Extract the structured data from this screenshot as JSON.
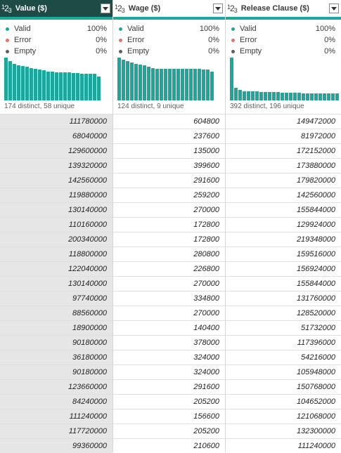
{
  "accent_color": "#1aa79c",
  "header_selected_color": "#1e4b45",
  "status_colors": {
    "valid": "#1aa79c",
    "error": "#e8706a",
    "empty": "#605e5c"
  },
  "columns": [
    {
      "name": "Value ($)",
      "type_icon": "whole-number-icon",
      "selected": true,
      "stats": {
        "valid_label": "Valid",
        "valid": "100%",
        "error_label": "Error",
        "error": "0%",
        "empty_label": "Empty",
        "empty": "0%"
      },
      "distribution_relative": [
        1.0,
        0.92,
        0.85,
        0.82,
        0.8,
        0.78,
        0.75,
        0.73,
        0.72,
        0.7,
        0.68,
        0.68,
        0.66,
        0.66,
        0.65,
        0.65,
        0.64,
        0.64,
        0.63,
        0.63,
        0.62,
        0.62,
        0.55
      ],
      "distinct_text": "174 distinct, 58 unique",
      "values": [
        "111780000",
        "68040000",
        "129600000",
        "139320000",
        "142560000",
        "119880000",
        "130140000",
        "110160000",
        "200340000",
        "118800000",
        "122040000",
        "130140000",
        "97740000",
        "88560000",
        "18900000",
        "90180000",
        "36180000",
        "90180000",
        "123660000",
        "84240000",
        "111240000",
        "117720000",
        "99360000"
      ]
    },
    {
      "name": "Wage ($)",
      "type_icon": "whole-number-icon",
      "selected": false,
      "stats": {
        "valid_label": "Valid",
        "valid": "100%",
        "error_label": "Error",
        "error": "0%",
        "empty_label": "Empty",
        "empty": "0%"
      },
      "distribution_relative": [
        1.0,
        0.95,
        0.92,
        0.88,
        0.86,
        0.84,
        0.82,
        0.78,
        0.76,
        0.74,
        0.74,
        0.74,
        0.74,
        0.74,
        0.74,
        0.74,
        0.74,
        0.74,
        0.74,
        0.74,
        0.72,
        0.72,
        0.68
      ],
      "distinct_text": "124 distinct, 9 unique",
      "values": [
        "604800",
        "237600",
        "135000",
        "399600",
        "291600",
        "259200",
        "270000",
        "172800",
        "172800",
        "280800",
        "226800",
        "270000",
        "334800",
        "270000",
        "140400",
        "378000",
        "324000",
        "324000",
        "291600",
        "205200",
        "156600",
        "205200",
        "210600"
      ]
    },
    {
      "name": "Release Clause ($)",
      "type_icon": "whole-number-icon",
      "selected": false,
      "stats": {
        "valid_label": "Valid",
        "valid": "100%",
        "error_label": "Error",
        "error": "0%",
        "empty_label": "Empty",
        "empty": "0%"
      },
      "distribution_relative": [
        1.0,
        0.3,
        0.24,
        0.22,
        0.22,
        0.21,
        0.21,
        0.2,
        0.2,
        0.19,
        0.19,
        0.19,
        0.18,
        0.18,
        0.18,
        0.18,
        0.18,
        0.17,
        0.17,
        0.17,
        0.17,
        0.17,
        0.17,
        0.16,
        0.16,
        0.16
      ],
      "distinct_text": "392 distinct, 196 unique",
      "values": [
        "149472000",
        "81972000",
        "172152000",
        "173880000",
        "179820000",
        "142560000",
        "155844000",
        "129924000",
        "219348000",
        "159516000",
        "156924000",
        "155844000",
        "131760000",
        "128520000",
        "51732000",
        "117396000",
        "54216000",
        "105948000",
        "150768000",
        "104652000",
        "121068000",
        "132300000",
        "111240000"
      ]
    }
  ]
}
